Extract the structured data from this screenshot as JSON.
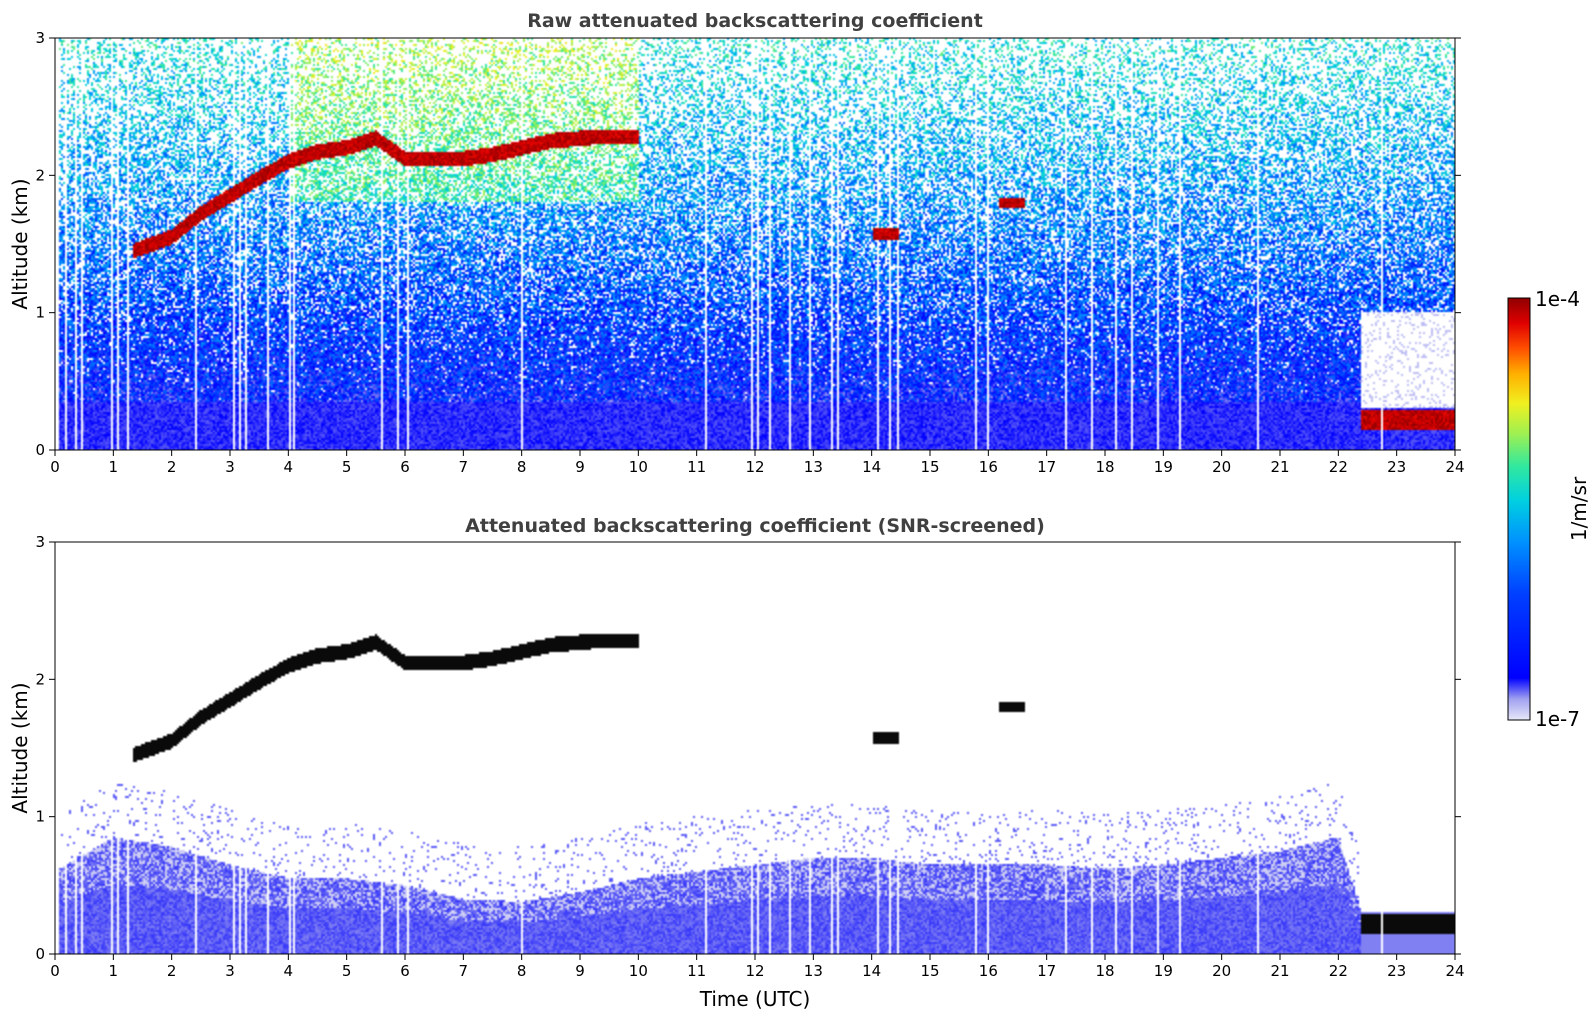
{
  "chart_data": [
    {
      "type": "heatmap",
      "title": "Raw attenuated backscattering coefficient",
      "xlabel": "",
      "ylabel": "Altitude (km)",
      "xlim": [
        0,
        24
      ],
      "ylim": [
        0,
        3
      ],
      "x_ticks": [
        "0",
        "1",
        "2",
        "3",
        "4",
        "5",
        "6",
        "7",
        "8",
        "9",
        "10",
        "11",
        "12",
        "13",
        "14",
        "15",
        "16",
        "17",
        "18",
        "19",
        "20",
        "21",
        "22",
        "23",
        "24"
      ],
      "y_ticks": [
        "0",
        "1",
        "2",
        "3"
      ],
      "grid": false,
      "features": {
        "cloud_layer_altitude_km": [
          {
            "time": 1.35,
            "alt": 1.45
          },
          {
            "time": 2.0,
            "alt": 1.55
          },
          {
            "time": 2.5,
            "alt": 1.72
          },
          {
            "time": 3.0,
            "alt": 1.85
          },
          {
            "time": 3.5,
            "alt": 1.98
          },
          {
            "time": 4.0,
            "alt": 2.1
          },
          {
            "time": 4.5,
            "alt": 2.17
          },
          {
            "time": 5.0,
            "alt": 2.2
          },
          {
            "time": 5.5,
            "alt": 2.27
          },
          {
            "time": 6.0,
            "alt": 2.12
          },
          {
            "time": 6.5,
            "alt": 2.12
          },
          {
            "time": 7.0,
            "alt": 2.12
          },
          {
            "time": 7.5,
            "alt": 2.15
          },
          {
            "time": 8.5,
            "alt": 2.25
          },
          {
            "time": 9.3,
            "alt": 2.28
          },
          {
            "time": 10.0,
            "alt": 2.28
          }
        ],
        "isolated_clouds": [
          {
            "time": 14.25,
            "alt": 1.57
          },
          {
            "time": 16.4,
            "alt": 1.8
          }
        ],
        "low_layer_after_time": 22.4,
        "low_layer_altitude_km": 0.22
      }
    },
    {
      "type": "heatmap",
      "title": "Attenuated backscattering coefficient (SNR-screened)",
      "xlabel": "Time (UTC)",
      "ylabel": "Altitude (km)",
      "xlim": [
        0,
        24
      ],
      "ylim": [
        0,
        3
      ],
      "x_ticks": [
        "0",
        "1",
        "2",
        "3",
        "4",
        "5",
        "6",
        "7",
        "8",
        "9",
        "10",
        "11",
        "12",
        "13",
        "14",
        "15",
        "16",
        "17",
        "18",
        "19",
        "20",
        "21",
        "22",
        "23",
        "24"
      ],
      "y_ticks": [
        "0",
        "1",
        "2",
        "3"
      ],
      "grid": false,
      "boundary_layer_top_km": [
        {
          "time": 0,
          "alt": 0.6
        },
        {
          "time": 1,
          "alt": 0.85
        },
        {
          "time": 2,
          "alt": 0.78
        },
        {
          "time": 3,
          "alt": 0.65
        },
        {
          "time": 4,
          "alt": 0.55
        },
        {
          "time": 5,
          "alt": 0.55
        },
        {
          "time": 6,
          "alt": 0.5
        },
        {
          "time": 7,
          "alt": 0.4
        },
        {
          "time": 8,
          "alt": 0.38
        },
        {
          "time": 9,
          "alt": 0.45
        },
        {
          "time": 10,
          "alt": 0.55
        },
        {
          "time": 11,
          "alt": 0.6
        },
        {
          "time": 12,
          "alt": 0.65
        },
        {
          "time": 13,
          "alt": 0.7
        },
        {
          "time": 14,
          "alt": 0.7
        },
        {
          "time": 15,
          "alt": 0.65
        },
        {
          "time": 16,
          "alt": 0.65
        },
        {
          "time": 17,
          "alt": 0.65
        },
        {
          "time": 18,
          "alt": 0.62
        },
        {
          "time": 19,
          "alt": 0.65
        },
        {
          "time": 20,
          "alt": 0.7
        },
        {
          "time": 21,
          "alt": 0.75
        },
        {
          "time": 22,
          "alt": 0.85
        },
        {
          "time": 22.4,
          "alt": 0.3
        },
        {
          "time": 23.8,
          "alt": 0.3
        }
      ]
    }
  ],
  "colorbar": {
    "label": "1/m/sr",
    "max_label": "1e-4",
    "min_label": "1e-7",
    "colormap": [
      "#e8e8f8",
      "#a0a0f0",
      "#0000ff",
      "#0040ff",
      "#0090ff",
      "#00d0e0",
      "#30e8a0",
      "#a0f050",
      "#f0f020",
      "#ffb000",
      "#ff5000",
      "#e00000",
      "#900000"
    ]
  }
}
